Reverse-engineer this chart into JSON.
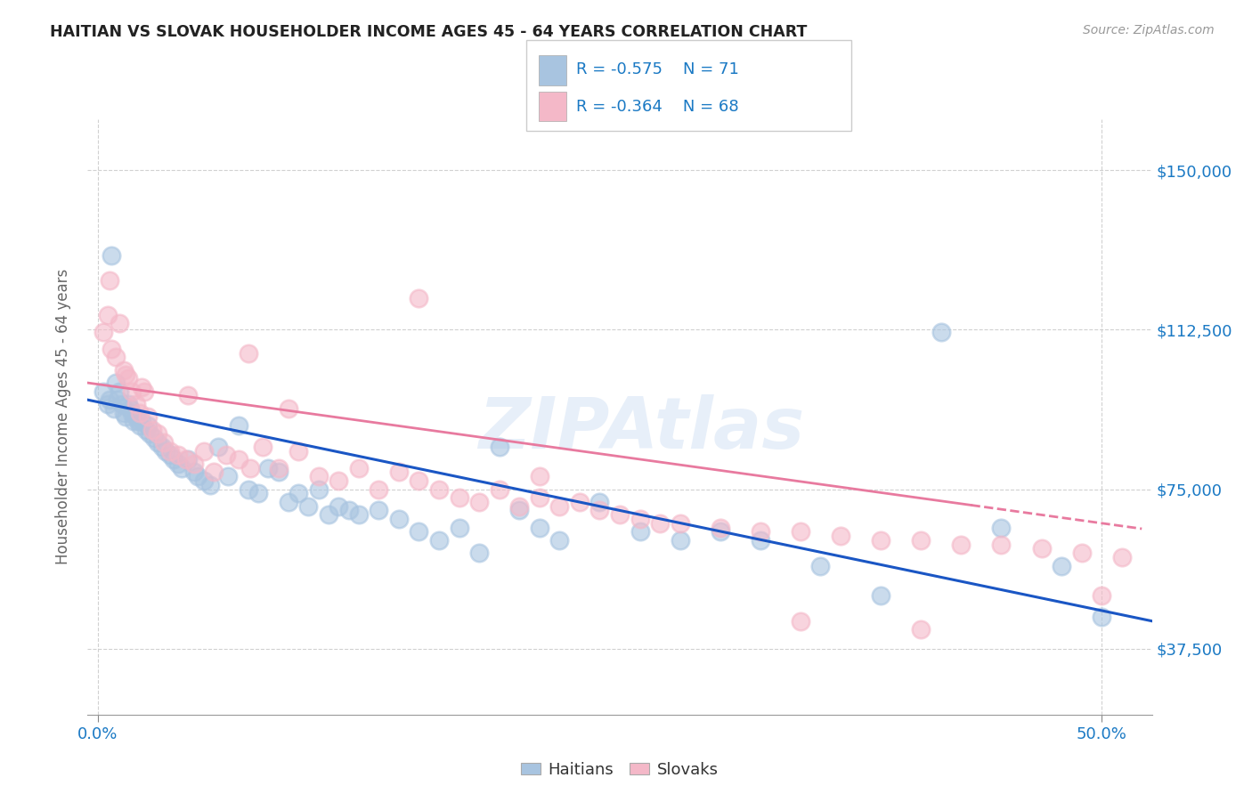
{
  "title": "HAITIAN VS SLOVAK HOUSEHOLDER INCOME AGES 45 - 64 YEARS CORRELATION CHART",
  "source": "Source: ZipAtlas.com",
  "ylabel": "Householder Income Ages 45 - 64 years",
  "xtick_labels": [
    "0.0%",
    "50.0%"
  ],
  "xtick_vals": [
    0.0,
    0.5
  ],
  "ytick_labels": [
    "$37,500",
    "$75,000",
    "$112,500",
    "$150,000"
  ],
  "ytick_vals": [
    37500,
    75000,
    112500,
    150000
  ],
  "ylim": [
    22000,
    162000
  ],
  "xlim": [
    -0.005,
    0.525
  ],
  "haitian_color": "#a8c4e0",
  "slovak_color": "#f4b8c8",
  "haitian_line_color": "#1a56c4",
  "slovak_line_color": "#e87a9f",
  "haitian_R": -0.575,
  "haitian_N": 71,
  "slovak_R": -0.364,
  "slovak_N": 68,
  "legend_label_haitian": "Haitians",
  "legend_label_slovak": "Slovaks",
  "watermark": "ZIPAtlas",
  "background_color": "#ffffff",
  "haitian_x": [
    0.003,
    0.005,
    0.006,
    0.007,
    0.008,
    0.009,
    0.01,
    0.011,
    0.012,
    0.013,
    0.014,
    0.015,
    0.016,
    0.017,
    0.018,
    0.019,
    0.02,
    0.021,
    0.022,
    0.024,
    0.025,
    0.026,
    0.028,
    0.03,
    0.032,
    0.034,
    0.036,
    0.038,
    0.04,
    0.042,
    0.045,
    0.048,
    0.05,
    0.053,
    0.056,
    0.06,
    0.065,
    0.07,
    0.075,
    0.08,
    0.085,
    0.09,
    0.095,
    0.1,
    0.105,
    0.11,
    0.115,
    0.12,
    0.125,
    0.13,
    0.14,
    0.15,
    0.16,
    0.17,
    0.18,
    0.19,
    0.2,
    0.21,
    0.22,
    0.23,
    0.25,
    0.27,
    0.29,
    0.31,
    0.33,
    0.36,
    0.39,
    0.42,
    0.45,
    0.48,
    0.5
  ],
  "haitian_y": [
    98000,
    95000,
    96000,
    130000,
    94000,
    100000,
    96000,
    98000,
    95000,
    93000,
    92000,
    95000,
    94000,
    93000,
    91000,
    92000,
    91000,
    90000,
    91000,
    89000,
    90000,
    88000,
    87000,
    86000,
    85000,
    84000,
    83000,
    82000,
    81000,
    80000,
    82000,
    79000,
    78000,
    77000,
    76000,
    85000,
    78000,
    90000,
    75000,
    74000,
    80000,
    79000,
    72000,
    74000,
    71000,
    75000,
    69000,
    71000,
    70000,
    69000,
    70000,
    68000,
    65000,
    63000,
    66000,
    60000,
    85000,
    70000,
    66000,
    63000,
    72000,
    65000,
    63000,
    65000,
    63000,
    57000,
    50000,
    112000,
    66000,
    57000,
    45000
  ],
  "slovak_x": [
    0.003,
    0.005,
    0.007,
    0.009,
    0.011,
    0.013,
    0.015,
    0.017,
    0.019,
    0.021,
    0.023,
    0.025,
    0.027,
    0.03,
    0.033,
    0.036,
    0.04,
    0.044,
    0.048,
    0.053,
    0.058,
    0.064,
    0.07,
    0.076,
    0.082,
    0.09,
    0.1,
    0.11,
    0.12,
    0.13,
    0.14,
    0.15,
    0.16,
    0.17,
    0.18,
    0.19,
    0.2,
    0.21,
    0.22,
    0.23,
    0.24,
    0.25,
    0.26,
    0.27,
    0.28,
    0.29,
    0.31,
    0.33,
    0.35,
    0.37,
    0.39,
    0.41,
    0.43,
    0.45,
    0.47,
    0.49,
    0.51,
    0.006,
    0.014,
    0.022,
    0.045,
    0.075,
    0.095,
    0.16,
    0.22,
    0.35,
    0.41,
    0.5
  ],
  "slovak_y": [
    112000,
    116000,
    108000,
    106000,
    114000,
    103000,
    101000,
    98000,
    95000,
    93000,
    98000,
    92000,
    89000,
    88000,
    86000,
    84000,
    83000,
    82000,
    81000,
    84000,
    79000,
    83000,
    82000,
    80000,
    85000,
    80000,
    84000,
    78000,
    77000,
    80000,
    75000,
    79000,
    77000,
    75000,
    73000,
    72000,
    75000,
    71000,
    73000,
    71000,
    72000,
    70000,
    69000,
    68000,
    67000,
    67000,
    66000,
    65000,
    65000,
    64000,
    63000,
    63000,
    62000,
    62000,
    61000,
    60000,
    59000,
    124000,
    102000,
    99000,
    97000,
    107000,
    94000,
    120000,
    78000,
    44000,
    42000,
    50000
  ]
}
